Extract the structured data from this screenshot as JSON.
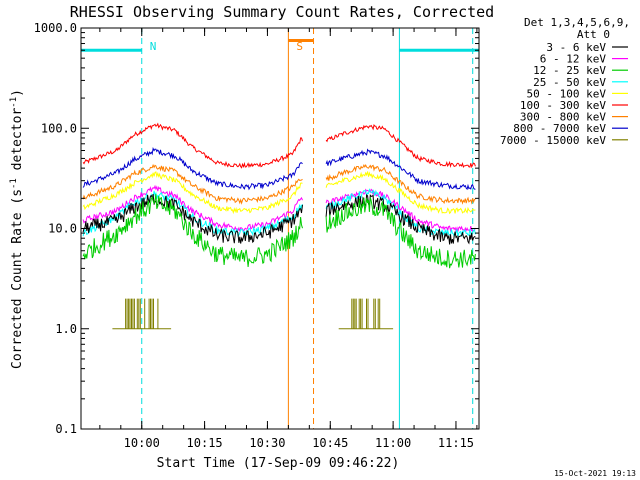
{
  "chart_data": {
    "type": "line",
    "title": "RHESSI Observing Summary Count Rates, Corrected",
    "xlabel": "Start Time (17-Sep-09 09:46:22)",
    "ylabel_parts": [
      "Corrected Count Rate (s",
      "-1",
      " detector",
      "-1",
      ")"
    ],
    "yscale": "log",
    "ylim": [
      0.1,
      1000
    ],
    "xlim": [
      -0.5,
      94.5
    ],
    "x_unit": "minutes since 09:46",
    "yticks": [
      {
        "v": 0.1,
        "label": "0.1"
      },
      {
        "v": 1,
        "label": "1.0"
      },
      {
        "v": 10,
        "label": "10.0"
      },
      {
        "v": 100,
        "label": "100.0"
      },
      {
        "v": 1000,
        "label": "1000.0"
      }
    ],
    "xticks": [
      {
        "t": 14,
        "label": "10:00"
      },
      {
        "t": 29,
        "label": "10:15"
      },
      {
        "t": 44,
        "label": "10:30"
      },
      {
        "t": 59,
        "label": "10:45"
      },
      {
        "t": 74,
        "label": "11:00"
      },
      {
        "t": 89,
        "label": "11:15"
      }
    ],
    "legend_header": [
      "Det 1,3,4,5,6,9,",
      "Att 0"
    ],
    "gap": [
      52.5,
      58
    ],
    "series": [
      {
        "name": "3 - 6 keV",
        "color": "#000000",
        "points": [
          [
            0,
            10
          ],
          [
            8,
            12
          ],
          [
            12,
            16
          ],
          [
            17,
            20
          ],
          [
            22,
            17
          ],
          [
            26,
            12
          ],
          [
            32,
            8.5
          ],
          [
            38,
            8
          ],
          [
            44,
            9
          ],
          [
            50,
            12
          ],
          [
            52,
            15
          ],
          [
            58,
            15
          ],
          [
            62,
            17
          ],
          [
            68,
            19
          ],
          [
            72,
            17
          ],
          [
            76,
            13
          ],
          [
            80,
            10
          ],
          [
            86,
            8
          ],
          [
            92,
            8
          ]
        ]
      },
      {
        "name": "6 - 12 keV",
        "color": "#ff00ff",
        "points": [
          [
            0,
            12
          ],
          [
            8,
            15
          ],
          [
            12,
            20
          ],
          [
            17,
            25
          ],
          [
            22,
            21
          ],
          [
            26,
            15
          ],
          [
            32,
            11
          ],
          [
            38,
            10
          ],
          [
            44,
            11
          ],
          [
            50,
            15
          ],
          [
            52,
            20
          ],
          [
            58,
            18
          ],
          [
            62,
            20
          ],
          [
            68,
            24
          ],
          [
            72,
            21
          ],
          [
            76,
            16
          ],
          [
            80,
            12
          ],
          [
            86,
            10
          ],
          [
            92,
            10
          ]
        ]
      },
      {
        "name": "12 - 25 keV",
        "color": "#00cc00",
        "points": [
          [
            0,
            5.5
          ],
          [
            8,
            9
          ],
          [
            12,
            13
          ],
          [
            17,
            18
          ],
          [
            22,
            15
          ],
          [
            26,
            9
          ],
          [
            32,
            5.5
          ],
          [
            38,
            5
          ],
          [
            44,
            5.5
          ],
          [
            50,
            8
          ],
          [
            52,
            11
          ],
          [
            58,
            11
          ],
          [
            62,
            14
          ],
          [
            68,
            17
          ],
          [
            72,
            15
          ],
          [
            76,
            9
          ],
          [
            80,
            6
          ],
          [
            86,
            5
          ],
          [
            92,
            5
          ]
        ]
      },
      {
        "name": "25 - 50 keV",
        "color": "#00ffff",
        "points": [
          [
            0,
            9
          ],
          [
            8,
            13
          ],
          [
            12,
            18
          ],
          [
            17,
            22
          ],
          [
            22,
            19
          ],
          [
            26,
            13
          ],
          [
            32,
            9.5
          ],
          [
            38,
            9
          ],
          [
            44,
            10
          ],
          [
            50,
            13
          ],
          [
            52,
            17
          ],
          [
            58,
            16
          ],
          [
            62,
            19
          ],
          [
            68,
            23
          ],
          [
            72,
            20
          ],
          [
            76,
            14
          ],
          [
            80,
            10
          ],
          [
            86,
            9
          ],
          [
            92,
            9
          ]
        ]
      },
      {
        "name": "50 - 100 keV",
        "color": "#ffff00",
        "points": [
          [
            0,
            16
          ],
          [
            8,
            22
          ],
          [
            12,
            28
          ],
          [
            17,
            35
          ],
          [
            22,
            30
          ],
          [
            26,
            22
          ],
          [
            32,
            16
          ],
          [
            38,
            15
          ],
          [
            44,
            16
          ],
          [
            50,
            21
          ],
          [
            52,
            28
          ],
          [
            58,
            26
          ],
          [
            62,
            30
          ],
          [
            68,
            35
          ],
          [
            72,
            31
          ],
          [
            76,
            23
          ],
          [
            80,
            17
          ],
          [
            86,
            15
          ],
          [
            92,
            15
          ]
        ]
      },
      {
        "name": "100 - 300 keV",
        "color": "#ff0000",
        "points": [
          [
            0,
            45
          ],
          [
            8,
            60
          ],
          [
            12,
            85
          ],
          [
            17,
            108
          ],
          [
            22,
            95
          ],
          [
            26,
            65
          ],
          [
            32,
            45
          ],
          [
            38,
            42
          ],
          [
            44,
            44
          ],
          [
            50,
            55
          ],
          [
            52,
            78
          ],
          [
            58,
            75
          ],
          [
            62,
            88
          ],
          [
            68,
            105
          ],
          [
            72,
            98
          ],
          [
            76,
            70
          ],
          [
            80,
            50
          ],
          [
            86,
            44
          ],
          [
            92,
            43
          ]
        ]
      },
      {
        "name": "300 - 800 keV",
        "color": "#ff8000",
        "points": [
          [
            0,
            20
          ],
          [
            8,
            27
          ],
          [
            12,
            35
          ],
          [
            17,
            42
          ],
          [
            22,
            37
          ],
          [
            26,
            27
          ],
          [
            32,
            20
          ],
          [
            38,
            19
          ],
          [
            44,
            20
          ],
          [
            50,
            26
          ],
          [
            52,
            32
          ],
          [
            58,
            31
          ],
          [
            62,
            36
          ],
          [
            68,
            42
          ],
          [
            72,
            38
          ],
          [
            76,
            28
          ],
          [
            80,
            21
          ],
          [
            86,
            19
          ],
          [
            92,
            19
          ]
        ]
      },
      {
        "name": "800 - 7000 keV",
        "color": "#0000cc",
        "points": [
          [
            0,
            27
          ],
          [
            8,
            36
          ],
          [
            12,
            48
          ],
          [
            17,
            60
          ],
          [
            22,
            53
          ],
          [
            26,
            38
          ],
          [
            32,
            28
          ],
          [
            38,
            26
          ],
          [
            44,
            27
          ],
          [
            50,
            34
          ],
          [
            52,
            46
          ],
          [
            58,
            44
          ],
          [
            62,
            50
          ],
          [
            68,
            58
          ],
          [
            72,
            53
          ],
          [
            76,
            40
          ],
          [
            80,
            30
          ],
          [
            86,
            27
          ],
          [
            92,
            26
          ]
        ]
      },
      {
        "name": "7000 - 15000 keV",
        "color": "#808000",
        "segments": [
          [
            7,
            21
          ],
          [
            61,
            74
          ]
        ],
        "range": [
          1,
          2
        ]
      }
    ],
    "annotations": [
      {
        "text": "N",
        "color": "#00dddd",
        "t": 14
      },
      {
        "text": "S",
        "color": "#ff8000",
        "t": 49
      }
    ],
    "flags": {
      "night_color": "#00dddd",
      "saa_color": "#ff8000",
      "night_level_y": 600,
      "night_ranges": [
        [
          -0.5,
          14
        ],
        [
          75.5,
          94.5
        ]
      ],
      "night_markers": [
        [
          -0.5,
          "solid"
        ],
        [
          14,
          "dashed"
        ],
        [
          75.5,
          "solid"
        ],
        [
          93,
          "dashed"
        ]
      ],
      "saa_range": [
        49,
        55
      ],
      "saa_level_y": 750,
      "saa_markers": [
        [
          49,
          "solid"
        ],
        [
          55,
          "dashed"
        ]
      ]
    }
  },
  "footer": {
    "timestamp": "15-Oct-2021 19:13"
  }
}
